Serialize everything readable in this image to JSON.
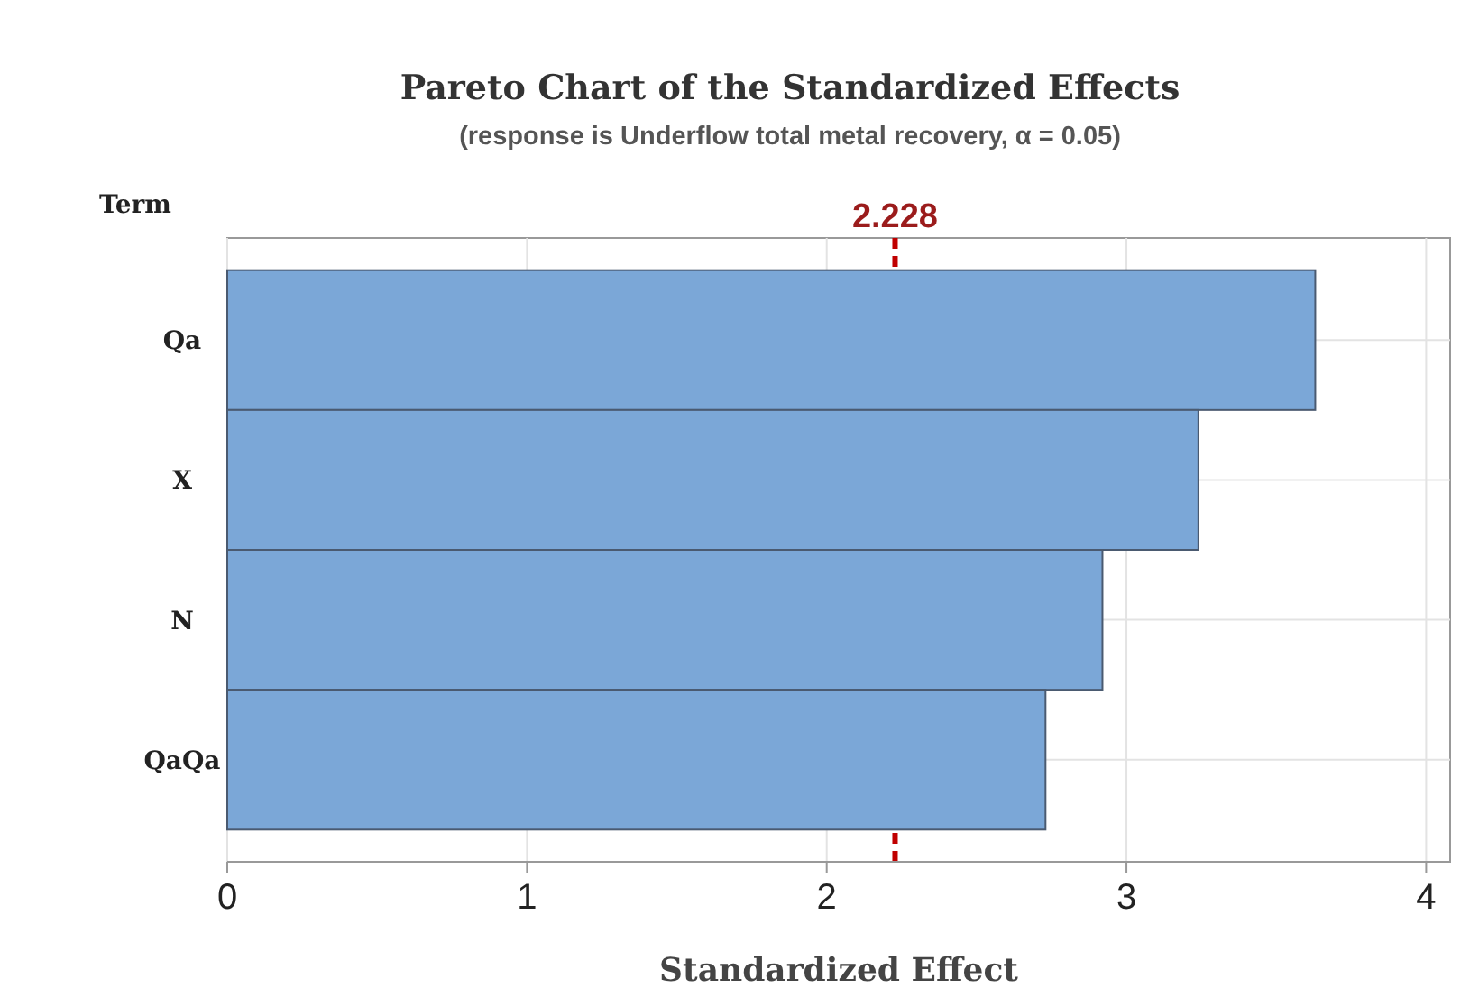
{
  "chart_data": {
    "type": "bar",
    "orientation": "horizontal",
    "title": "Pareto Chart of the Standardized Effects",
    "subtitle": "(response is Underflow total metal recovery, α = 0.05)",
    "xlabel": "Standardized Effect",
    "ylabel": "Term",
    "categories": [
      "Qa",
      "X",
      "N",
      "QaQa"
    ],
    "values": [
      3.63,
      3.24,
      2.92,
      2.73
    ],
    "color": "#7ba7d7",
    "xlim": [
      0,
      4.08
    ],
    "xticks": [
      0,
      1,
      2,
      3,
      4
    ],
    "grid": true,
    "ref_lines": [
      {
        "axis": "x",
        "value": 2.228,
        "label": "2.228",
        "color": "#c00000",
        "line_style": "dashed"
      }
    ]
  }
}
